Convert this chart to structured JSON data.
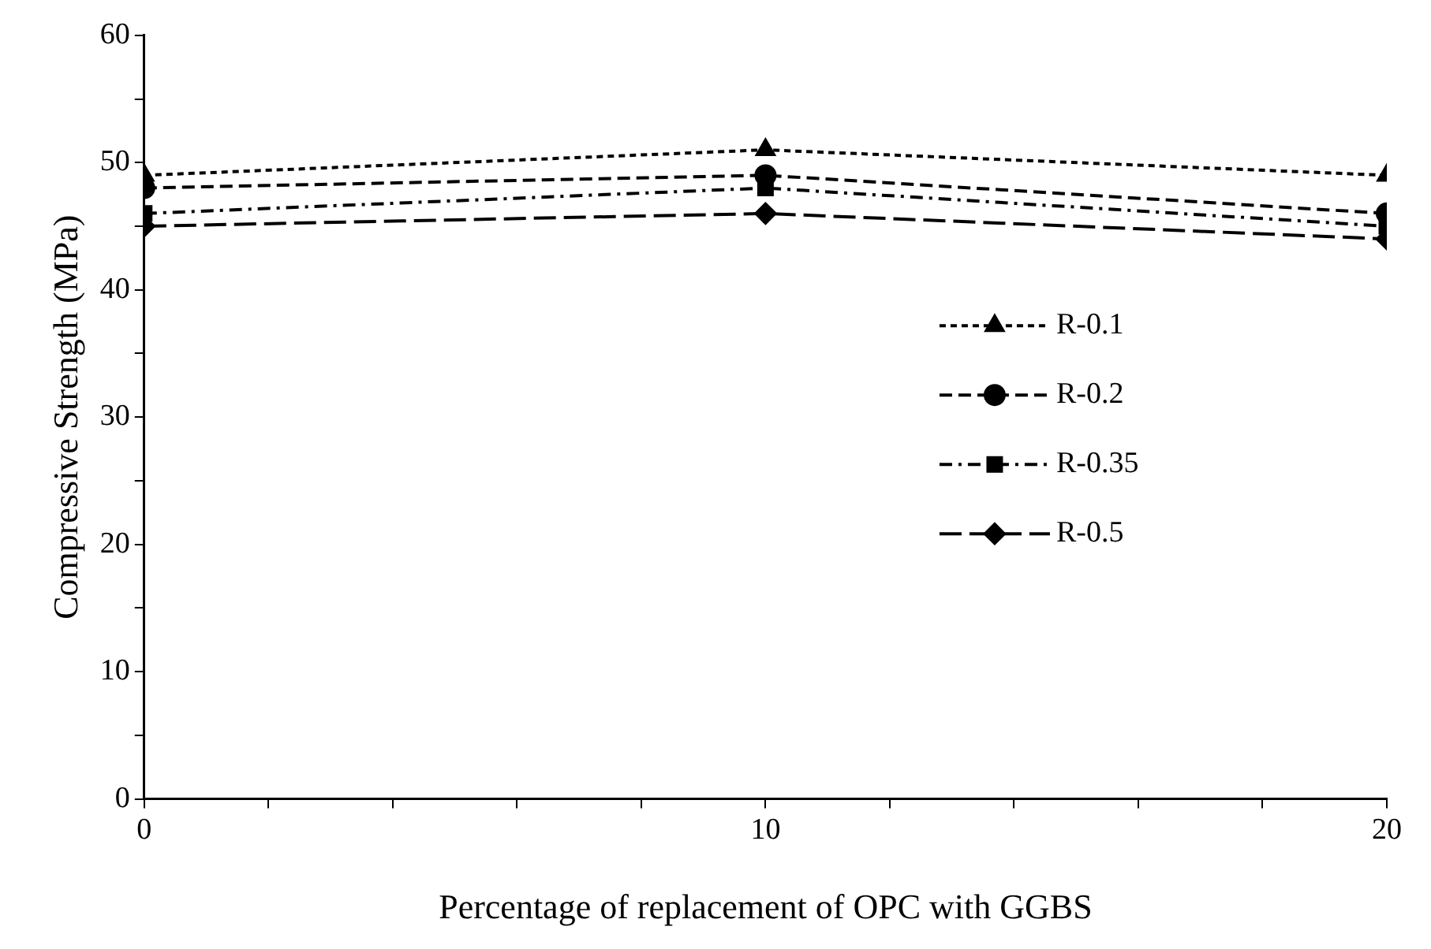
{
  "chart_data": {
    "type": "line",
    "xlabel": "Percentage of replacement of OPC with GGBS",
    "ylabel": "Compressive Strength (MPa)",
    "x": [
      0,
      10,
      20
    ],
    "series": [
      {
        "name": "R-0.1",
        "color": "#000000",
        "values": [
          49,
          51,
          49
        ],
        "marker": "triangle",
        "line_style": "dotted"
      },
      {
        "name": "R-0.2",
        "color": "#000000",
        "values": [
          48,
          49,
          46
        ],
        "marker": "circle",
        "line_style": "dashed"
      },
      {
        "name": "R-0.35",
        "color": "#000000",
        "values": [
          46,
          48,
          45
        ],
        "marker": "square",
        "line_style": "dashed"
      },
      {
        "name": "R-0.5",
        "color": "#000000",
        "values": [
          45,
          46,
          44
        ],
        "marker": "diamond",
        "line_style": "dashed"
      }
    ],
    "xlim": [
      0,
      20
    ],
    "xticks": [
      0,
      {
        "value": 2,
        "label": null
      },
      {
        "value": 4,
        "label": null
      },
      {
        "value": 6,
        "label": null
      },
      {
        "value": 8,
        "label": null
      },
      10,
      {
        "value": 12,
        "label": null
      },
      {
        "value": 14,
        "label": null
      },
      {
        "value": 16,
        "label": null
      },
      {
        "value": 18,
        "label": null
      },
      20
    ],
    "ylim": [
      0,
      60
    ],
    "yticks": [
      0,
      {
        "value": 5,
        "label": null
      },
      10,
      {
        "value": 15,
        "label": null
      },
      20,
      {
        "value": 25,
        "label": null
      },
      30,
      {
        "value": 35,
        "label": null
      },
      40,
      {
        "value": 45,
        "label": null
      },
      50,
      {
        "value": 55,
        "label": null
      },
      60
    ],
    "grid": false,
    "legend": "right"
  }
}
